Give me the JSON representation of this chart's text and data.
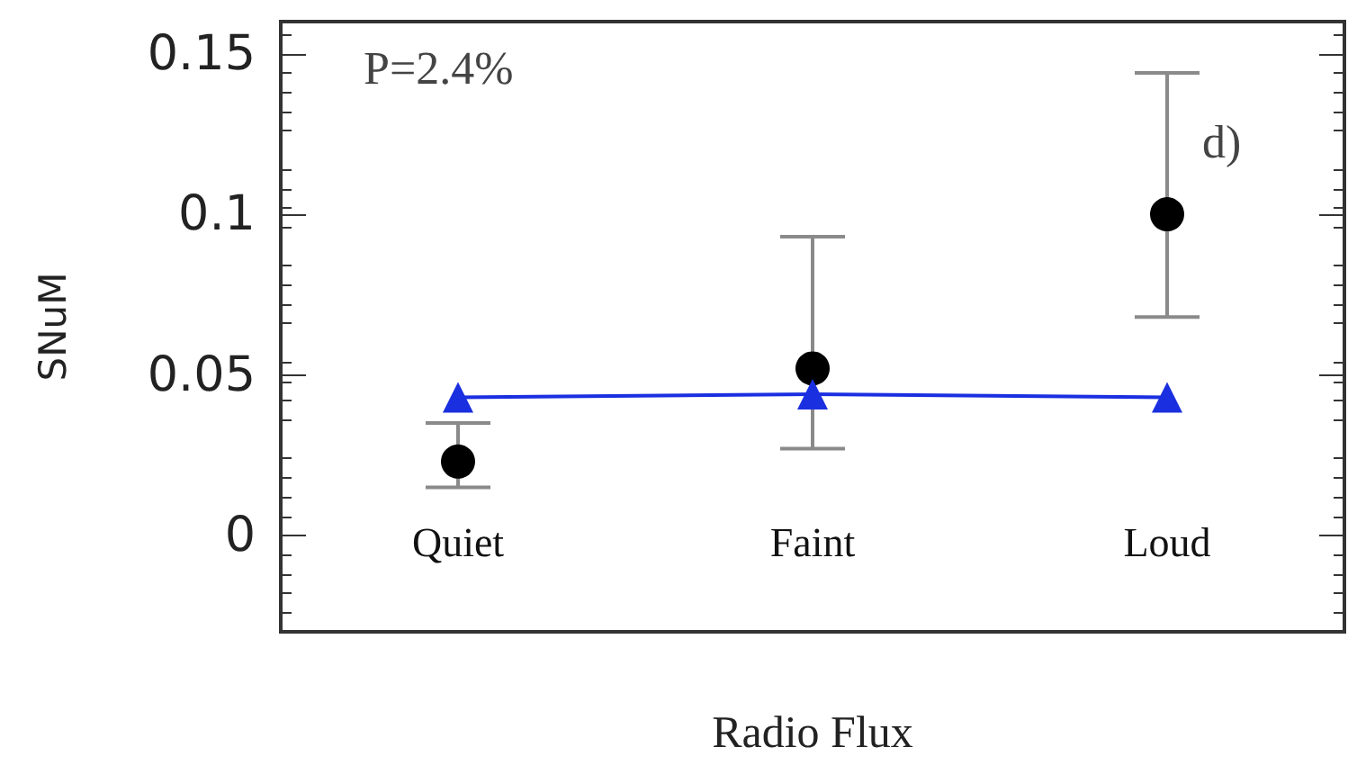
{
  "chart_data": {
    "type": "scatter",
    "xlabel": "Radio Flux",
    "ylabel": "SNuM",
    "categories": [
      "Quiet",
      "Faint",
      "Loud"
    ],
    "series": [
      {
        "color": "#000000",
        "marker": "circle",
        "values": [
          0.023,
          0.052,
          0.1
        ],
        "errors": [
          [
            0.015,
            0.035
          ],
          [
            0.027,
            0.093
          ],
          [
            0.068,
            0.144
          ]
        ]
      },
      {
        "type": "line",
        "color": "#1a2fe0",
        "marker": "triangle",
        "line_style": "solid",
        "values": [
          0.043,
          0.044,
          0.043
        ]
      }
    ],
    "ylim": [
      -0.03,
      0.16
    ],
    "yticks": [
      0,
      0.05,
      0.1,
      0.15
    ],
    "grid": false,
    "annotations": [
      "P=2.4%",
      "d)"
    ]
  }
}
